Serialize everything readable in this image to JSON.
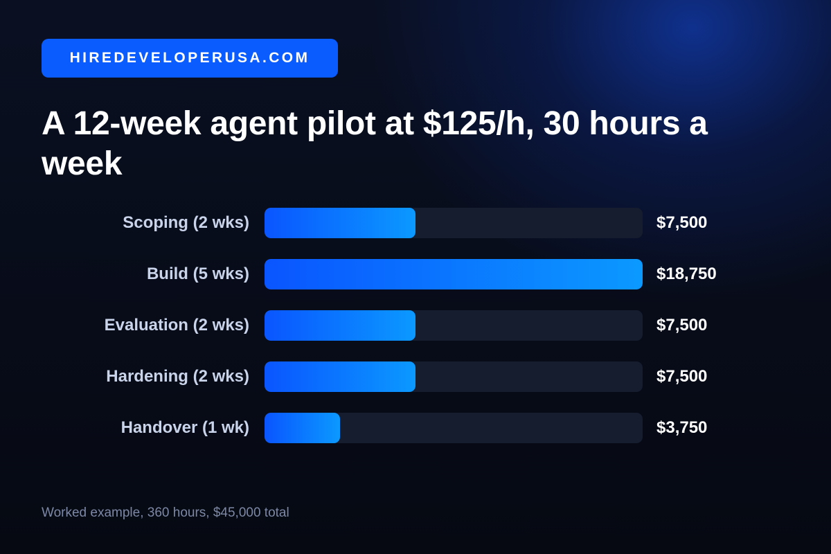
{
  "brand": {
    "label": "HIREDEVELOPERUSA.COM",
    "color": "#0a5cff"
  },
  "title": "A 12-week agent pilot at $125/h, 30 hours a week",
  "footnote": "Worked example, 360 hours, $45,000 total",
  "colors": {
    "background": "#070b18",
    "bar_start": "#0a55ff",
    "bar_end": "#0b99ff",
    "track": "#161d2e",
    "label": "#c9d3ea",
    "value": "#ffffff",
    "footnote": "#7d88a6"
  },
  "chart_data": {
    "type": "bar",
    "orientation": "horizontal",
    "title": "A 12-week agent pilot at $125/h, 30 hours a week",
    "categories": [
      "Scoping (2 wks)",
      "Build (5 wks)",
      "Evaluation (2 wks)",
      "Hardening (2 wks)",
      "Handover (1 wk)"
    ],
    "values": [
      7500,
      18750,
      7500,
      7500,
      3750
    ],
    "value_labels": [
      "$7,500",
      "$18,750",
      "$7,500",
      "$7,500",
      "$3,750"
    ],
    "xlim": [
      0,
      18750
    ],
    "grid": false,
    "legend": "none"
  }
}
